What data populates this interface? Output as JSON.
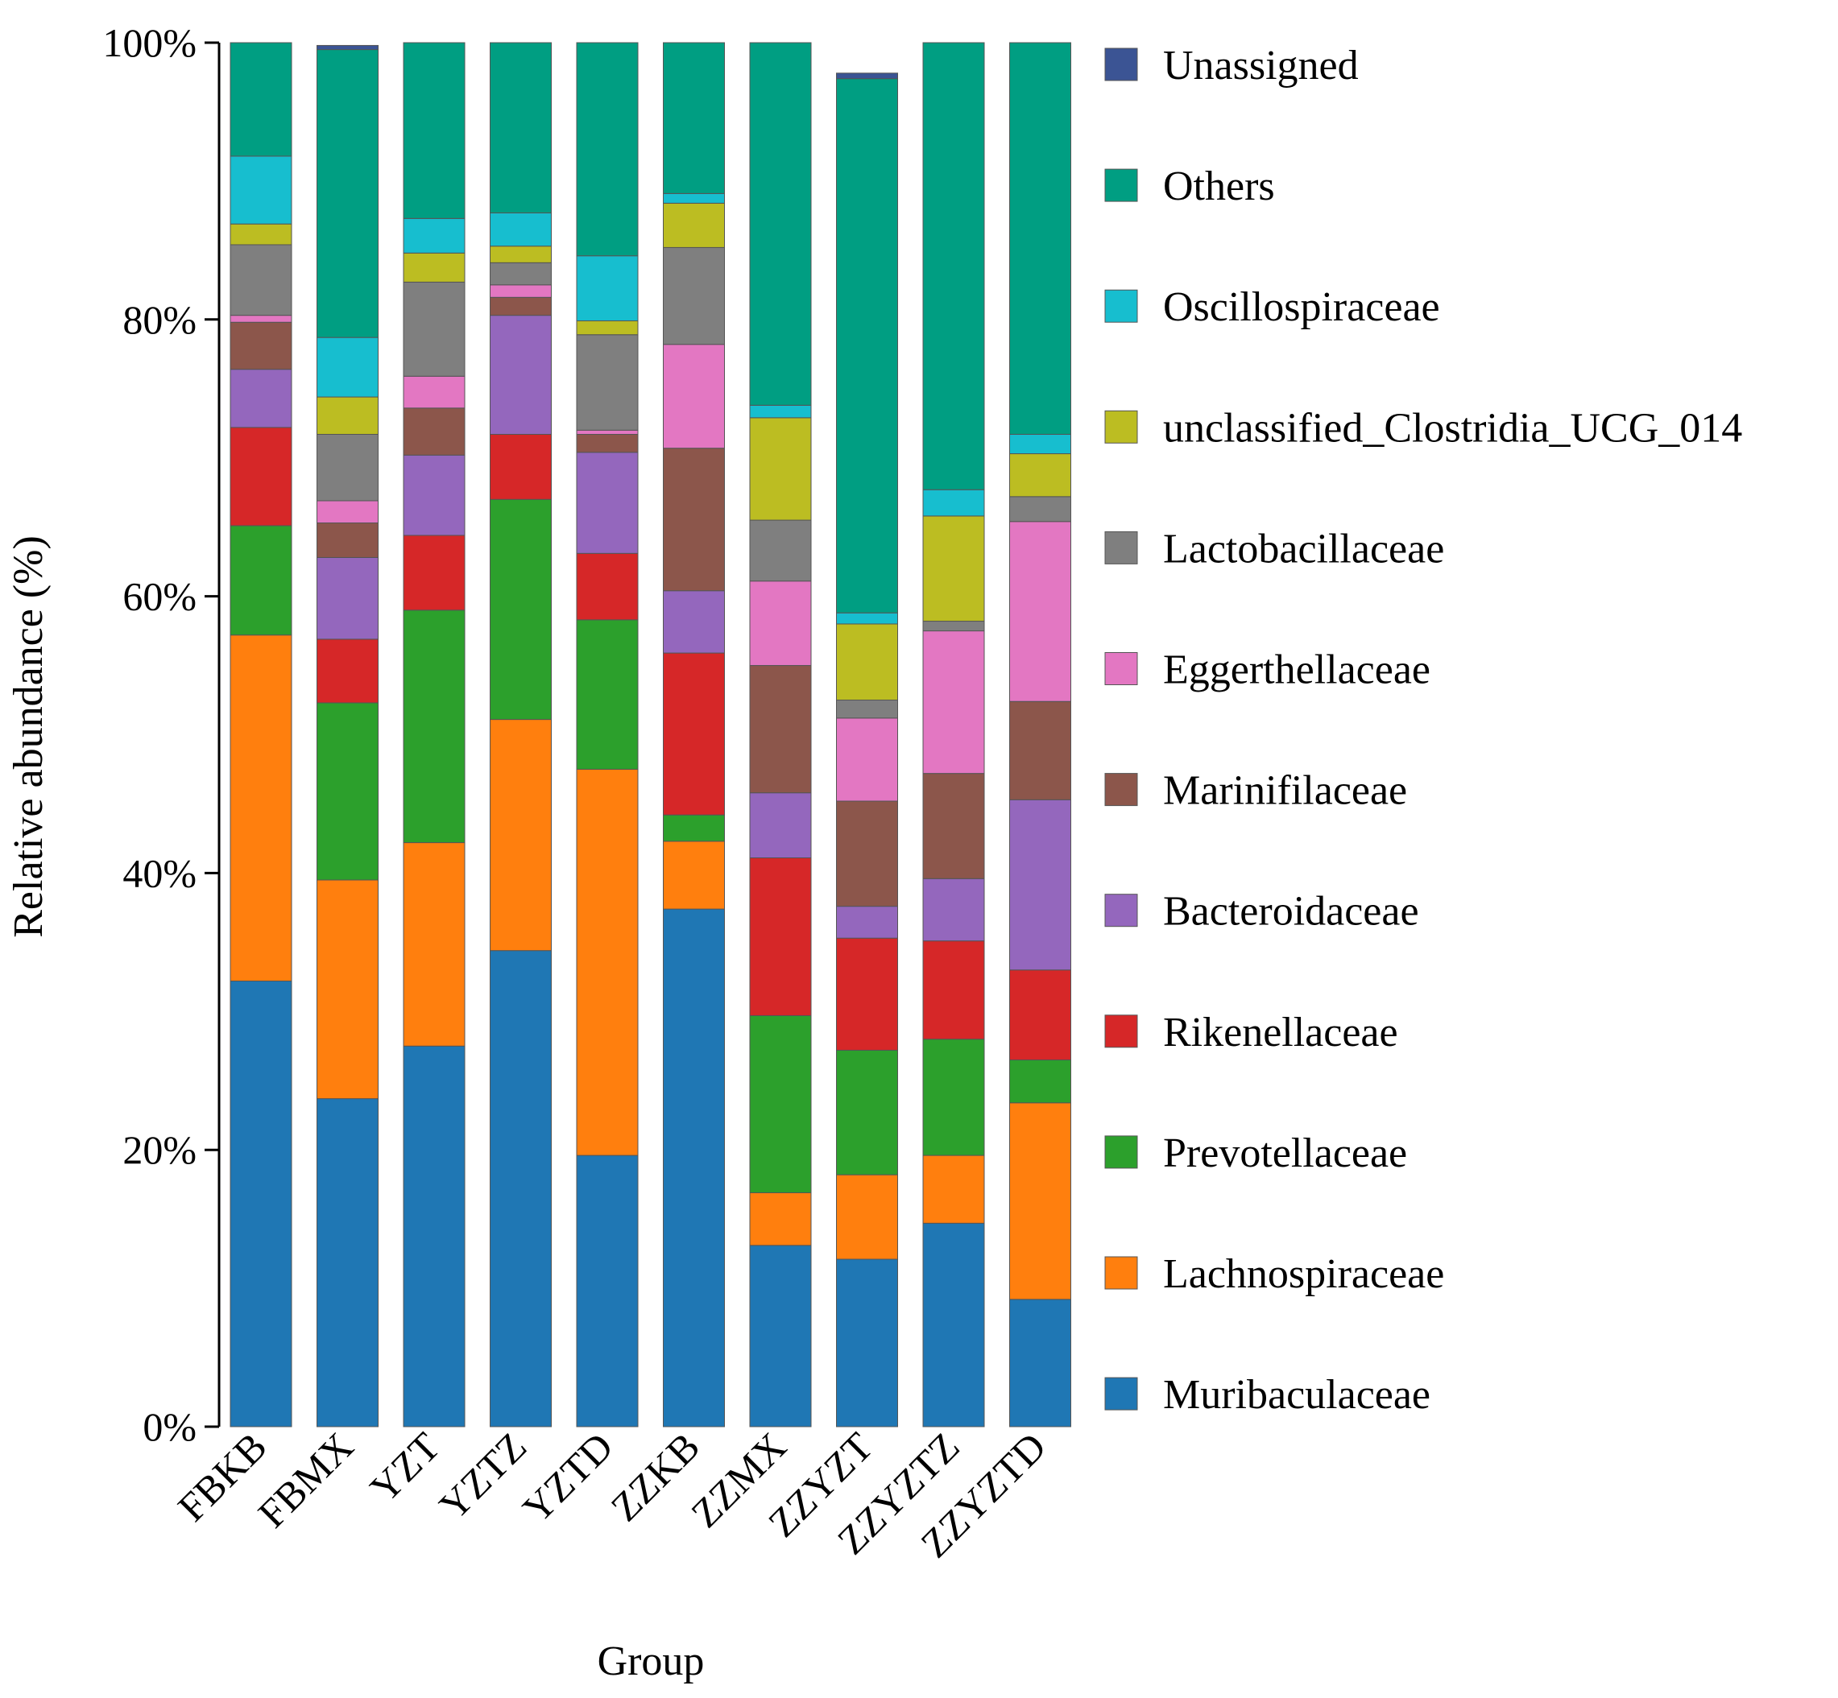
{
  "chart_data": {
    "type": "bar",
    "stacked": true,
    "orientation": "vertical",
    "title": "",
    "xlabel": "Group",
    "ylabel": "Relative abundance (%)",
    "ylim": [
      0,
      100
    ],
    "yticks": [
      0,
      20,
      40,
      60,
      80,
      100
    ],
    "ytick_labels": [
      "0%",
      "20%",
      "40%",
      "60%",
      "80%",
      "100%"
    ],
    "legend_position": "right",
    "grid": false,
    "categories": [
      "FBKB",
      "FBMX",
      "YZT",
      "YZTZ",
      "YZTD",
      "ZZKB",
      "ZZMX",
      "ZZYZT",
      "ZZYZTZ",
      "ZZYZTD"
    ],
    "series": [
      {
        "name": "Muribaculaceae",
        "color": "#1f77b4",
        "values": [
          32.2,
          23.7,
          27.5,
          34.4,
          19.6,
          37.4,
          13.1,
          12.1,
          14.7,
          9.2
        ]
      },
      {
        "name": "Lachnospiraceae",
        "color": "#ff7f0e",
        "values": [
          25.0,
          15.8,
          14.7,
          16.7,
          27.9,
          4.9,
          3.8,
          6.1,
          4.9,
          14.2
        ]
      },
      {
        "name": "Prevotellaceae",
        "color": "#2ca02c",
        "values": [
          7.9,
          12.8,
          16.8,
          15.9,
          10.8,
          1.9,
          12.8,
          9.0,
          8.4,
          3.1
        ]
      },
      {
        "name": "Rikenellaceae",
        "color": "#d62728",
        "values": [
          7.1,
          4.6,
          5.4,
          4.7,
          4.8,
          11.7,
          11.4,
          8.1,
          7.1,
          6.5
        ]
      },
      {
        "name": "Bacteroidaceae",
        "color": "#9467bd",
        "values": [
          4.2,
          5.9,
          5.8,
          8.6,
          7.3,
          4.5,
          4.7,
          2.3,
          4.5,
          12.3
        ]
      },
      {
        "name": "Marinifilaceae",
        "color": "#8c564b",
        "values": [
          3.4,
          2.5,
          3.4,
          1.3,
          1.3,
          10.3,
          9.2,
          7.6,
          7.6,
          7.1
        ]
      },
      {
        "name": "Eggerthellaceae",
        "color": "#e377c2",
        "values": [
          0.5,
          1.6,
          2.3,
          0.9,
          0.3,
          7.5,
          6.1,
          6.0,
          10.3,
          13.0
        ]
      },
      {
        "name": "Lactobacillaceae",
        "color": "#7f7f7f",
        "values": [
          5.1,
          4.8,
          6.8,
          1.6,
          6.9,
          7.0,
          4.4,
          1.3,
          0.7,
          1.8
        ]
      },
      {
        "name": "unclassified_Clostridia_UCG_014",
        "color": "#bcbd22",
        "values": [
          1.5,
          2.7,
          2.1,
          1.2,
          1.0,
          3.2,
          7.4,
          5.5,
          7.6,
          3.1
        ]
      },
      {
        "name": "Oscillospiraceae",
        "color": "#17becf",
        "values": [
          4.9,
          4.3,
          2.5,
          2.4,
          4.7,
          0.7,
          0.9,
          0.8,
          1.9,
          1.4
        ]
      },
      {
        "name": "Others",
        "color": "#009e82",
        "values": [
          8.2,
          20.8,
          12.7,
          12.3,
          15.4,
          10.9,
          26.2,
          38.6,
          32.3,
          28.3
        ]
      },
      {
        "name": "Unassigned",
        "color": "#3b5494",
        "values": [
          0.0,
          0.3,
          0.0,
          0.0,
          0.0,
          0.0,
          0.0,
          0.4,
          0.0,
          0.0
        ]
      }
    ]
  }
}
